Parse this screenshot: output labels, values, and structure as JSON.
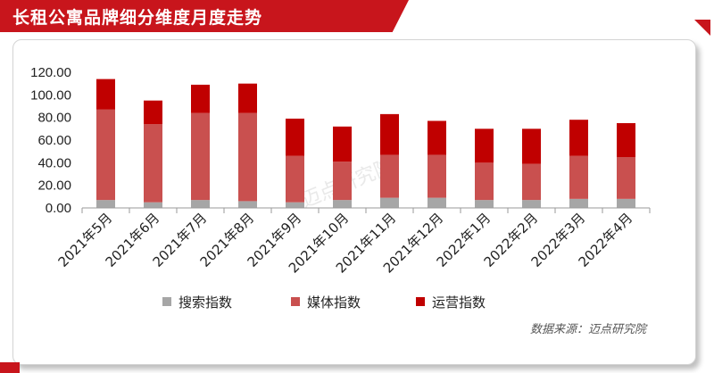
{
  "header": {
    "title": "长租公寓品牌细分维度月度走势"
  },
  "source": "数据来源：迈点研究院",
  "watermark": "迈点研究院",
  "colors": {
    "search": "#a6a6a6",
    "media": "#c9504f",
    "ops": "#c00000",
    "brand": "#c8151c"
  },
  "chart_data": {
    "type": "bar",
    "stacked": true,
    "title": "长租公寓品牌细分维度月度走势",
    "categories": [
      "2021年5月",
      "2021年6月",
      "2021年7月",
      "2021年8月",
      "2021年9月",
      "2021年10月",
      "2021年11月",
      "2021年12月",
      "2022年1月",
      "2022年2月",
      "2022年3月",
      "2022年4月"
    ],
    "series": [
      {
        "name": "搜索指数",
        "color": "#a6a6a6",
        "values": [
          7,
          5,
          7,
          6,
          5,
          7,
          9,
          9,
          7,
          7,
          8,
          8
        ]
      },
      {
        "name": "媒体指数",
        "color": "#c9504f",
        "values": [
          80,
          69,
          77,
          78,
          41,
          34,
          38,
          38,
          33,
          32,
          38,
          37
        ]
      },
      {
        "name": "运营指数",
        "color": "#c00000",
        "values": [
          27,
          21,
          25,
          26,
          33,
          31,
          36,
          30,
          30,
          31,
          32,
          30
        ]
      }
    ],
    "ylim": [
      0,
      120
    ],
    "yticks": [
      "0.00",
      "20.00",
      "40.00",
      "60.00",
      "80.00",
      "100.00",
      "120.00"
    ],
    "grid": false,
    "legend": "bottom"
  }
}
